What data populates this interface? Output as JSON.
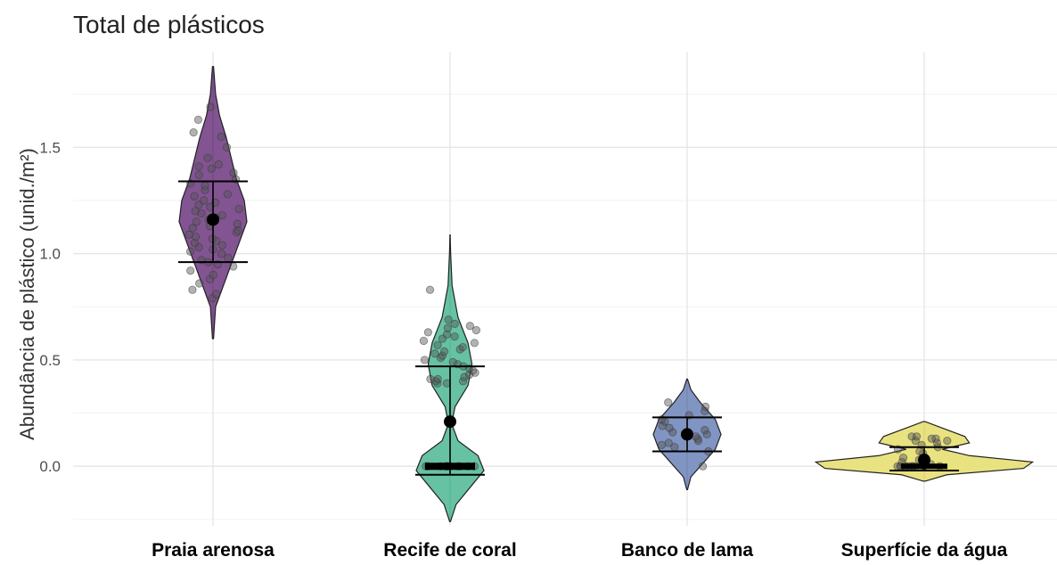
{
  "chart_data": {
    "type": "violin",
    "title": "Total de plásticos",
    "xlabel": "",
    "ylabel": "Abundância de plástico (unid./m²)",
    "ylim": [
      -0.28,
      1.95
    ],
    "yticks": [
      0.0,
      0.5,
      1.0,
      1.5
    ],
    "ytick_labels": [
      "0.0",
      "0.5",
      "1.0",
      "1.5"
    ],
    "grid": true,
    "categories": [
      "Praia arenosa",
      "Recife de coral",
      "Banco de lama",
      "Superfície da água"
    ],
    "series": [
      {
        "category": "Praia arenosa",
        "color": "#7b4b8c",
        "mean": 1.16,
        "sd_low": 0.96,
        "sd_high": 1.34,
        "range": [
          0.6,
          1.88
        ],
        "density": [
          [
            0.6,
            0.002
          ],
          [
            0.75,
            0.01
          ],
          [
            0.85,
            0.04
          ],
          [
            0.95,
            0.07
          ],
          [
            1.05,
            0.1
          ],
          [
            1.15,
            0.13
          ],
          [
            1.25,
            0.12
          ],
          [
            1.35,
            0.09
          ],
          [
            1.45,
            0.07
          ],
          [
            1.55,
            0.05
          ],
          [
            1.65,
            0.025
          ],
          [
            1.75,
            0.01
          ],
          [
            1.88,
            0.002
          ]
        ],
        "points": [
          0.79,
          0.81,
          0.83,
          0.86,
          0.88,
          0.9,
          0.92,
          0.94,
          0.95,
          0.96,
          0.97,
          0.98,
          1.0,
          1.01,
          1.02,
          1.03,
          1.04,
          1.05,
          1.06,
          1.07,
          1.08,
          1.09,
          1.1,
          1.11,
          1.12,
          1.13,
          1.14,
          1.15,
          1.16,
          1.17,
          1.18,
          1.19,
          1.2,
          1.21,
          1.22,
          1.23,
          1.24,
          1.25,
          1.27,
          1.28,
          1.3,
          1.32,
          1.33,
          1.35,
          1.37,
          1.38,
          1.4,
          1.41,
          1.42,
          1.45,
          1.5,
          1.55,
          1.57,
          1.63,
          1.69
        ]
      },
      {
        "category": "Recife de coral",
        "color": "#5fbf9f",
        "mean": 0.21,
        "sd_low": -0.04,
        "sd_high": 0.47,
        "range": [
          -0.26,
          1.09
        ],
        "density": [
          [
            -0.26,
            0.002
          ],
          [
            -0.18,
            0.03
          ],
          [
            -0.1,
            0.1
          ],
          [
            -0.02,
            0.17
          ],
          [
            0.05,
            0.14
          ],
          [
            0.12,
            0.04
          ],
          [
            0.2,
            0.008
          ],
          [
            0.28,
            0.025
          ],
          [
            0.38,
            0.09
          ],
          [
            0.48,
            0.11
          ],
          [
            0.58,
            0.09
          ],
          [
            0.7,
            0.04
          ],
          [
            0.85,
            0.01
          ],
          [
            1.0,
            0.003
          ],
          [
            1.09,
            0.0
          ]
        ],
        "points": [
          0.0,
          0.0,
          0.0,
          0.0,
          0.0,
          0.0,
          0.0,
          0.0,
          0.0,
          0.0,
          0.0,
          0.0,
          0.39,
          0.39,
          0.4,
          0.4,
          0.41,
          0.41,
          0.42,
          0.43,
          0.44,
          0.45,
          0.46,
          0.47,
          0.48,
          0.49,
          0.5,
          0.51,
          0.52,
          0.53,
          0.54,
          0.55,
          0.56,
          0.57,
          0.58,
          0.59,
          0.6,
          0.61,
          0.62,
          0.63,
          0.64,
          0.65,
          0.66,
          0.67,
          0.69,
          0.83
        ]
      },
      {
        "category": "Banco de lama",
        "color": "#7a8fbf",
        "mean": 0.15,
        "sd_low": 0.07,
        "sd_high": 0.23,
        "range": [
          -0.11,
          0.41
        ],
        "density": [
          [
            -0.11,
            0.002
          ],
          [
            -0.05,
            0.02
          ],
          [
            0.02,
            0.09
          ],
          [
            0.08,
            0.15
          ],
          [
            0.15,
            0.18
          ],
          [
            0.22,
            0.15
          ],
          [
            0.3,
            0.07
          ],
          [
            0.36,
            0.02
          ],
          [
            0.41,
            0.002
          ]
        ],
        "points": [
          0.0,
          0.07,
          0.09,
          0.1,
          0.11,
          0.12,
          0.13,
          0.14,
          0.15,
          0.16,
          0.17,
          0.18,
          0.19,
          0.21,
          0.22,
          0.24,
          0.26,
          0.28,
          0.3
        ]
      },
      {
        "category": "Superfície da água",
        "color": "#e8e07a",
        "mean": 0.03,
        "sd_low": -0.02,
        "sd_high": 0.09,
        "range": [
          -0.07,
          0.21
        ],
        "density": [
          [
            -0.07,
            0.002
          ],
          [
            -0.04,
            0.05
          ],
          [
            -0.01,
            0.22
          ],
          [
            0.02,
            0.24
          ],
          [
            0.05,
            0.1
          ],
          [
            0.08,
            0.04
          ],
          [
            0.11,
            0.1
          ],
          [
            0.14,
            0.09
          ],
          [
            0.18,
            0.04
          ],
          [
            0.21,
            0.002
          ]
        ],
        "points": [
          0.0,
          0.0,
          0.0,
          0.0,
          0.0,
          0.0,
          0.0,
          0.0,
          0.0,
          0.0,
          0.0,
          0.0,
          0.01,
          0.02,
          0.03,
          0.04,
          0.06,
          0.07,
          0.08,
          0.09,
          0.1,
          0.11,
          0.12,
          0.12,
          0.13,
          0.13,
          0.14,
          0.14
        ]
      }
    ]
  }
}
